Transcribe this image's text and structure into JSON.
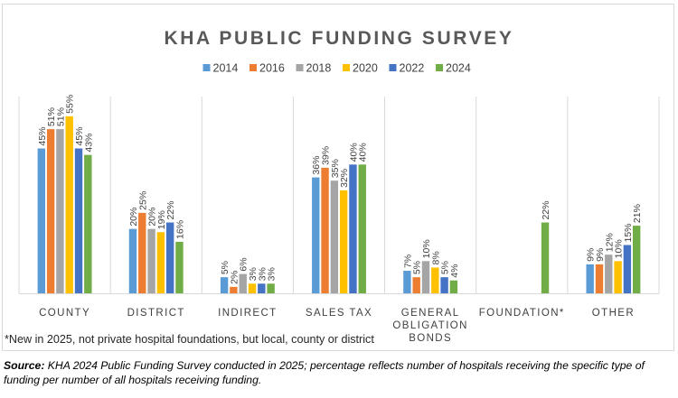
{
  "chart_data": {
    "type": "bar",
    "title": "KHA PUBLIC FUNDING SURVEY",
    "categories": [
      "COUNTY",
      "DISTRICT",
      "INDIRECT",
      "SALES TAX",
      "GENERAL OBLIGATION BONDS",
      "FOUNDATION*",
      "OTHER"
    ],
    "category_lines": [
      [
        "COUNTY"
      ],
      [
        "DISTRICT"
      ],
      [
        "INDIRECT"
      ],
      [
        "SALES TAX"
      ],
      [
        "GENERAL",
        "OBLIGATION",
        "BONDS"
      ],
      [
        "FOUNDATION*"
      ],
      [
        "OTHER"
      ]
    ],
    "series": [
      {
        "name": "2014",
        "color": "#5b9bd5",
        "values": [
          45,
          20,
          5,
          36,
          7,
          null,
          9
        ]
      },
      {
        "name": "2016",
        "color": "#ed7d31",
        "values": [
          51,
          25,
          2,
          39,
          5,
          null,
          9
        ]
      },
      {
        "name": "2018",
        "color": "#a5a5a5",
        "values": [
          51,
          20,
          6,
          35,
          10,
          null,
          12
        ]
      },
      {
        "name": "2020",
        "color": "#ffc000",
        "values": [
          55,
          19,
          3,
          32,
          8,
          null,
          10
        ]
      },
      {
        "name": "2022",
        "color": "#4472c4",
        "values": [
          45,
          22,
          3,
          40,
          5,
          null,
          15
        ]
      },
      {
        "name": "2024",
        "color": "#70ad47",
        "values": [
          43,
          16,
          3,
          40,
          4,
          22,
          21
        ]
      }
    ],
    "value_suffix": "%",
    "ylim": [
      0,
      60
    ],
    "xlabel": "",
    "ylabel": "",
    "legend_position": "top-center",
    "footnote": "*New in 2025, not private hospital foundations, but local, county or district"
  },
  "source": {
    "label": "Source:",
    "text": " KHA 2024 Public Funding Survey conducted in 2025; percentage reflects number of hospitals receiving the specific type of funding per number of all hospitals receiving funding."
  }
}
